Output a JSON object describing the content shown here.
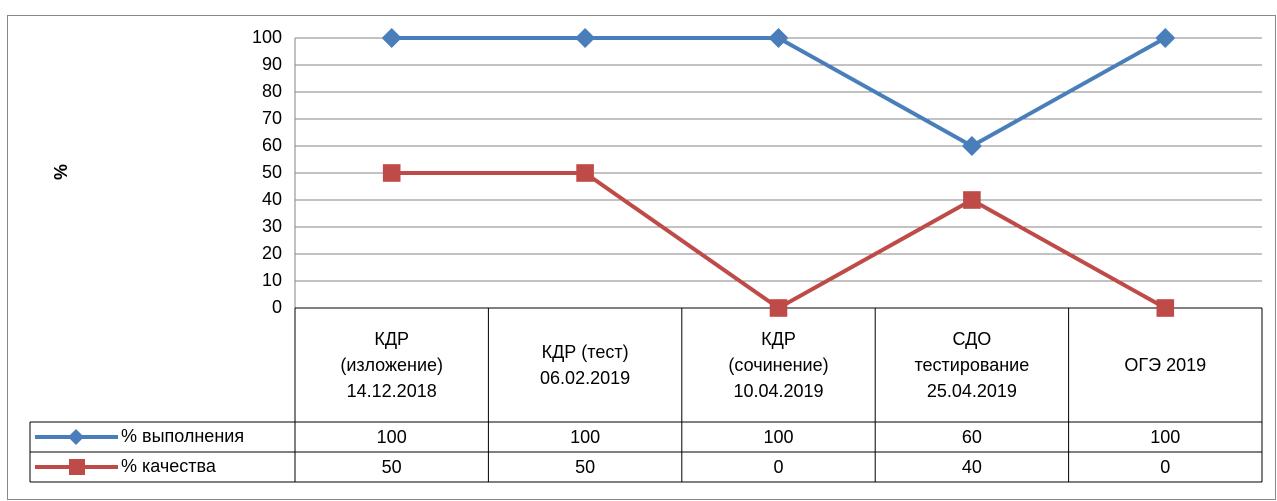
{
  "chart_data": {
    "type": "line",
    "y_label": "%",
    "categories": [
      "КДР\n(изложение)\n14.12.2018",
      "КДР (тест)\n06.02.2019",
      "КДР\n(сочинение)\n10.04.2019",
      "СДО\nтестирование\n25.04.2019",
      "ОГЭ 2019"
    ],
    "series": [
      {
        "name": "% выполнения",
        "color": "#4a7ebb",
        "marker": "diamond",
        "values": [
          100,
          100,
          100,
          60,
          100
        ]
      },
      {
        "name": "% качества",
        "color": "#be4b48",
        "marker": "square",
        "values": [
          50,
          50,
          0,
          40,
          0
        ]
      }
    ],
    "ylim": [
      0,
      100
    ],
    "yticks": [
      0,
      10,
      20,
      30,
      40,
      50,
      60,
      70,
      80,
      90,
      100
    ],
    "grid": true,
    "data_table": true
  }
}
